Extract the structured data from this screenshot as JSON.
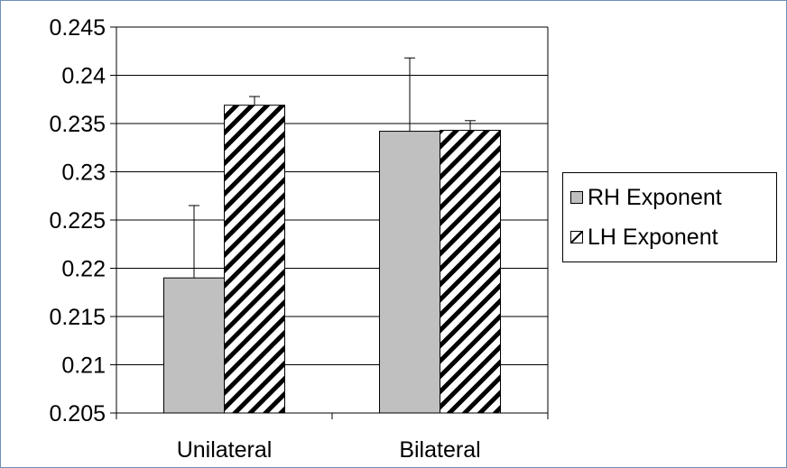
{
  "chart_data": {
    "type": "bar",
    "categories": [
      "Unilateral",
      "Bilateral"
    ],
    "series": [
      {
        "name": "RH Exponent",
        "values": [
          0.219,
          0.2342
        ],
        "error_upper": [
          0.2265,
          0.2418
        ],
        "fill": "#c0c0c0",
        "pattern": "solid"
      },
      {
        "name": "LH Exponent",
        "values": [
          0.2369,
          0.2343
        ],
        "error_upper": [
          0.2378,
          0.2353
        ],
        "fill": "#ffffff",
        "pattern": "diagonal-hatch"
      }
    ],
    "ylim": [
      0.205,
      0.245
    ],
    "yticks": [
      "0.205",
      "0.21",
      "0.215",
      "0.22",
      "0.225",
      "0.23",
      "0.235",
      "0.24",
      "0.245"
    ],
    "ytick_values": [
      0.205,
      0.21,
      0.215,
      0.22,
      0.225,
      0.23,
      0.235,
      0.24,
      0.245
    ],
    "grid": "horizontal",
    "legend_position": "right",
    "error_bars": "upper only",
    "colors": {
      "frame_border": "#6f8fb6",
      "axis": "#000000",
      "grid": "#000000",
      "rh_fill": "#c0c0c0",
      "lh_hatch": "#000000"
    }
  }
}
